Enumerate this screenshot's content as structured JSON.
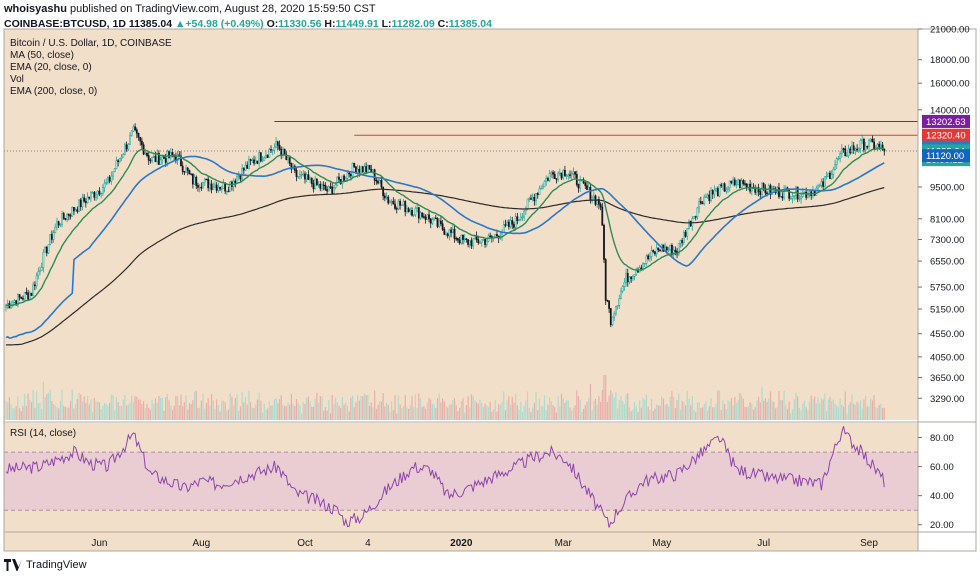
{
  "header": {
    "author": "whoisyashu",
    "published": "published on TradingView.com, August 28, 2020 15:59:50 CST",
    "symbol": "COINBASE:BTCUSD, 1D",
    "last": "11385.04",
    "change": "+54.98 (+0.49%)",
    "ohlc_o_label": "O:",
    "ohlc_o": "11330.56",
    "ohlc_h_label": "H:",
    "ohlc_h": "11449.91",
    "ohlc_l_label": "L:",
    "ohlc_l": "11282.09",
    "ohlc_c_label": "C:",
    "ohlc_c": "11385.04"
  },
  "footer": {
    "brand": "TradingView"
  },
  "colors": {
    "panel_bg": "#f2dfc9",
    "up": "#26a69a",
    "down": "#131722",
    "ma50": "#2979c9",
    "ema20": "#2e8b57",
    "ema200": "#2b2b2b",
    "rsi": "#8e44ad",
    "rsi_band": "#e6c4d6",
    "res_purple": "#7b1fa2",
    "res_red": "#e53935"
  },
  "chart_data": [
    {
      "type": "candlestick",
      "title": "Bitcoin / U.S. Dollar, 1D, COINBASE",
      "legend": [
        "MA (50, close)",
        "EMA (20, close, 0)",
        "Vol",
        "EMA (200, close, 0)"
      ],
      "legend_placement": "top-left",
      "y_scale": "log",
      "ylim": [
        2950,
        21000
      ],
      "y_ticks": [
        "21000.00",
        "18000.00",
        "16000.00",
        "14000.00",
        "9500.00",
        "8100.00",
        "7300.00",
        "6550.00",
        "5750.00",
        "5150.00",
        "4550.00",
        "4050.00",
        "3650.00",
        "3290.00"
      ],
      "x_ticks": [
        "Jun",
        "Aug",
        "Oct",
        "4",
        "2020",
        "Mar",
        "May",
        "Jul",
        "Sep"
      ],
      "price_tags": [
        {
          "label": "13202.63",
          "value": 13202.63,
          "color": "#7b1fa2"
        },
        {
          "label": "12320.40",
          "value": 12320.4,
          "color": "#e53935"
        },
        {
          "label": "11597.92",
          "value": 11597.92,
          "color": "#2979c9"
        },
        {
          "label": "11385.04",
          "value": 11385.04,
          "color": "#26a69a"
        },
        {
          "label": "16:00:12",
          "value": 10900,
          "color": "#26a69a"
        },
        {
          "label": "11120.00",
          "value": 11120.0,
          "color": "#1565c0"
        }
      ],
      "resistance_levels": [
        13202.63,
        12320.4
      ],
      "close_anchors": [
        [
          0,
          5250
        ],
        [
          15,
          5600
        ],
        [
          30,
          7900
        ],
        [
          45,
          8800
        ],
        [
          60,
          9700
        ],
        [
          75,
          12500
        ],
        [
          85,
          10900
        ],
        [
          100,
          11100
        ],
        [
          110,
          9800
        ],
        [
          130,
          9500
        ],
        [
          145,
          10800
        ],
        [
          160,
          11700
        ],
        [
          170,
          10100
        ],
        [
          190,
          9300
        ],
        [
          205,
          10500
        ],
        [
          215,
          10300
        ],
        [
          225,
          8900
        ],
        [
          245,
          8300
        ],
        [
          255,
          7800
        ],
        [
          270,
          7200
        ],
        [
          285,
          7300
        ],
        [
          300,
          8000
        ],
        [
          310,
          9000
        ],
        [
          320,
          10100
        ],
        [
          330,
          10300
        ],
        [
          345,
          9100
        ],
        [
          350,
          8700
        ],
        [
          353,
          5500
        ],
        [
          356,
          4900
        ],
        [
          365,
          6000
        ],
        [
          385,
          7000
        ],
        [
          395,
          6900
        ],
        [
          410,
          9000
        ],
        [
          430,
          9700
        ],
        [
          450,
          9300
        ],
        [
          470,
          9200
        ],
        [
          480,
          9500
        ],
        [
          492,
          11200
        ],
        [
          505,
          11800
        ],
        [
          512,
          11700
        ],
        [
          517,
          11385.04
        ]
      ],
      "total_candles": 518
    },
    {
      "type": "line",
      "title": "RSI (14, close)",
      "y_ticks": [
        "80.00",
        "60.00",
        "40.00",
        "20.00"
      ],
      "ylim": [
        15,
        90
      ],
      "band": [
        30,
        70
      ],
      "rsi_anchors": [
        [
          0,
          58
        ],
        [
          20,
          60
        ],
        [
          40,
          70
        ],
        [
          50,
          62
        ],
        [
          60,
          60
        ],
        [
          75,
          82
        ],
        [
          85,
          55
        ],
        [
          105,
          45
        ],
        [
          115,
          50
        ],
        [
          125,
          48
        ],
        [
          145,
          55
        ],
        [
          160,
          60
        ],
        [
          170,
          42
        ],
        [
          180,
          38
        ],
        [
          195,
          30
        ],
        [
          200,
          22
        ],
        [
          210,
          26
        ],
        [
          225,
          45
        ],
        [
          240,
          60
        ],
        [
          250,
          58
        ],
        [
          260,
          40
        ],
        [
          270,
          44
        ],
        [
          285,
          52
        ],
        [
          300,
          60
        ],
        [
          310,
          66
        ],
        [
          320,
          70
        ],
        [
          330,
          65
        ],
        [
          345,
          38
        ],
        [
          355,
          20
        ],
        [
          360,
          30
        ],
        [
          375,
          50
        ],
        [
          395,
          55
        ],
        [
          410,
          70
        ],
        [
          420,
          80
        ],
        [
          430,
          58
        ],
        [
          450,
          52
        ],
        [
          470,
          50
        ],
        [
          480,
          48
        ],
        [
          492,
          85
        ],
        [
          505,
          68
        ],
        [
          512,
          58
        ],
        [
          517,
          50
        ]
      ]
    }
  ]
}
